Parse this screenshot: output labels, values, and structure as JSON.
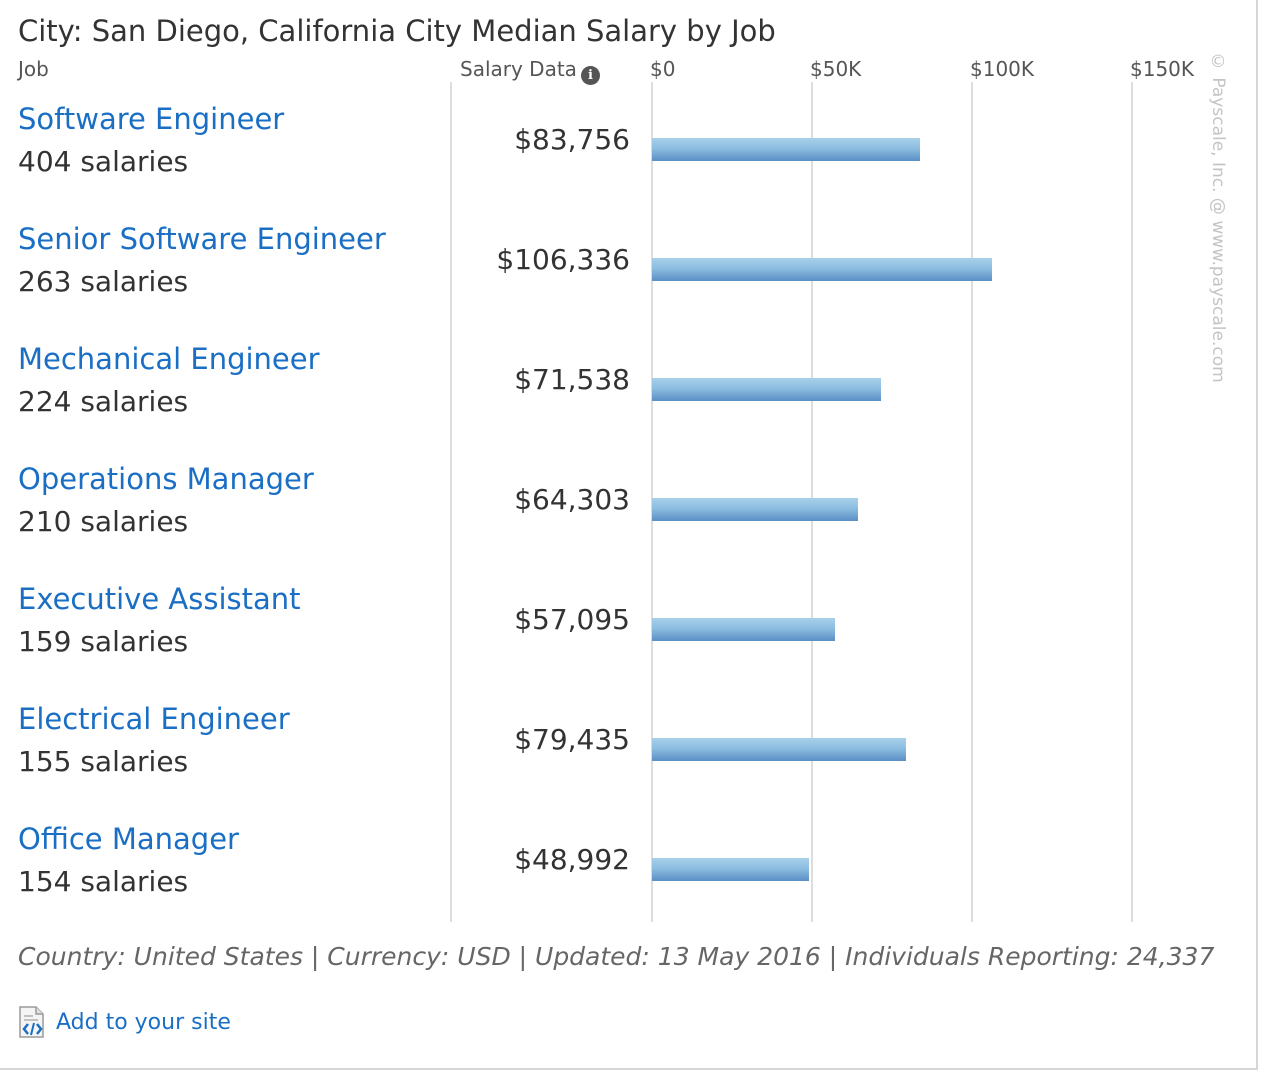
{
  "chart_data": {
    "type": "bar",
    "orientation": "horizontal",
    "title": "City: San Diego, California City Median Salary by Job",
    "column_headers": {
      "job": "Job",
      "salary": "Salary Data"
    },
    "x_ticks": [
      "$0",
      "$50K",
      "$100K",
      "$150K"
    ],
    "xlim": [
      0,
      150000
    ],
    "grid": true,
    "categories": [
      "Software Engineer",
      "Senior Software Engineer",
      "Mechanical Engineer",
      "Operations Manager",
      "Executive Assistant",
      "Electrical Engineer",
      "Office Manager"
    ],
    "counts": [
      "404 salaries",
      "263 salaries",
      "224 salaries",
      "210 salaries",
      "159 salaries",
      "155 salaries",
      "154 salaries"
    ],
    "values": [
      83756,
      106336,
      71538,
      64303,
      57095,
      79435,
      48992
    ],
    "value_labels": [
      "$83,756",
      "$106,336",
      "$71,538",
      "$64,303",
      "$57,095",
      "$79,435",
      "$48,992"
    ],
    "bar_color": "#7aaad6"
  },
  "footer": {
    "info": "Country: United States | Currency: USD | Updated: 13 May 2016 | Individuals Reporting: 24,337",
    "add_link": "Add to your site"
  },
  "watermark": "© Payscale, Inc. @ www.payscale.com",
  "colors": {
    "link": "#1a6fc4",
    "bar_top": "#a8d0ea",
    "bar_bottom": "#5a8fc4"
  },
  "icons": {
    "info": "info-icon",
    "add": "embed-code-icon"
  }
}
